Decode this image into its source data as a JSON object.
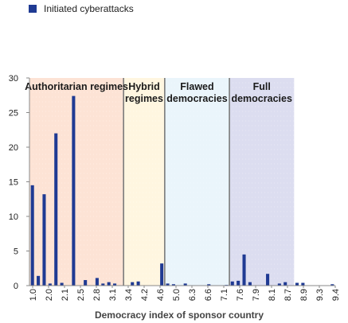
{
  "legend": {
    "label": "Initiated cyberattacks",
    "color": "#1F3A93"
  },
  "chart_data": {
    "type": "bar",
    "xlabel": "Democracy index of sponsor country",
    "ylabel": "",
    "ylim": [
      0,
      30
    ],
    "yticks": [
      0,
      5,
      10,
      15,
      20,
      25,
      30
    ],
    "x_tick_labels": [
      "1.0",
      "2.0",
      "2.1",
      "2.5",
      "2.8",
      "3.1",
      "3.4",
      "4.2",
      "4.6",
      "5.0",
      "6.3",
      "6.6",
      "7.1",
      "7.6",
      "7.9",
      "8.1",
      "8.7",
      "8.9",
      "9.3",
      "9.4"
    ],
    "bar_color": "#1F3A93",
    "regions": [
      {
        "label": [
          "Authoritarian regimes"
        ],
        "from": 0,
        "to": 16,
        "color": "#FDE3D5"
      },
      {
        "label": [
          "Hybrid",
          "regimes"
        ],
        "from": 16,
        "to": 23,
        "color": "#FFF6E0"
      },
      {
        "label": [
          "Flawed",
          "democracies"
        ],
        "from": 23,
        "to": 34,
        "color": "#EAF5FB"
      },
      {
        "label": [
          "Full",
          "democracies"
        ],
        "from": 34,
        "to": 45,
        "color": "#DCDDF0"
      }
    ],
    "values": [
      14.5,
      1.4,
      13.2,
      0.3,
      22,
      0.4,
      0,
      27.4,
      0,
      0.8,
      0,
      1.1,
      0.3,
      0.5,
      0.3,
      0,
      0,
      0.5,
      0.6,
      0,
      0,
      0,
      3.2,
      0.3,
      0.2,
      0,
      0.3,
      0,
      0,
      0,
      0.2,
      0,
      0,
      0.1,
      0.6,
      0.7,
      4.5,
      0.5,
      0,
      0,
      1.7,
      0,
      0.3,
      0.5,
      0,
      0.4,
      0.4,
      0,
      0,
      0,
      0,
      0.2
    ]
  }
}
